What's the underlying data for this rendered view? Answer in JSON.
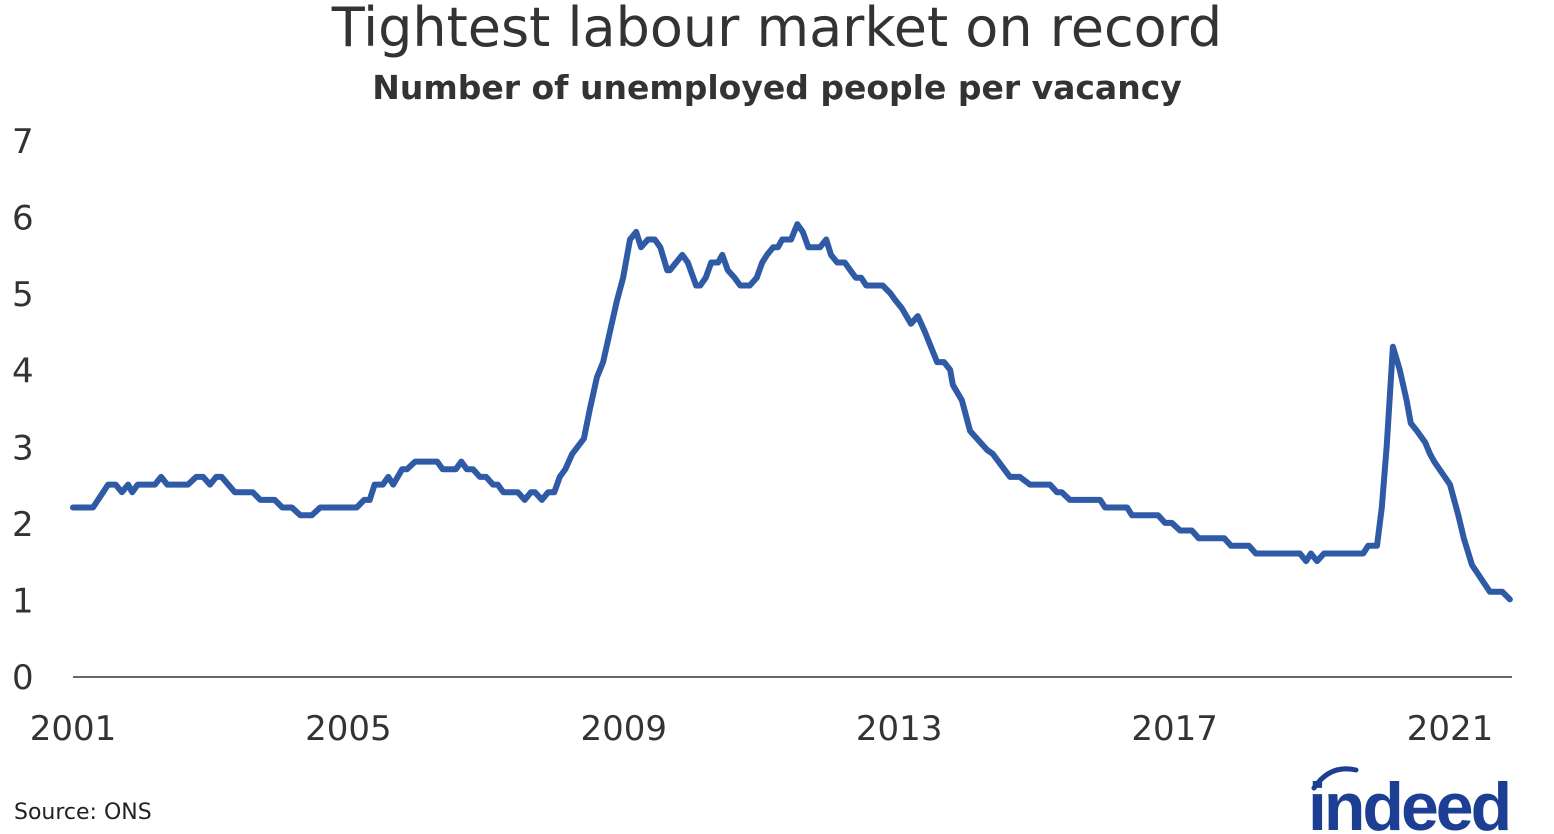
{
  "chart_data": {
    "type": "line",
    "title": "Tightest labour market on record",
    "subtitle": "Number of unemployed people per vacancy",
    "xlabel": "",
    "ylabel": "",
    "xlim": [
      2001,
      2022
    ],
    "ylim": [
      0,
      7
    ],
    "x_ticks": [
      2001,
      2005,
      2009,
      2013,
      2017,
      2021
    ],
    "y_ticks": [
      0,
      1,
      2,
      3,
      4,
      5,
      6,
      7
    ],
    "grid": false,
    "line_color": "#2F5AA5",
    "points": [
      [
        2001.0,
        2.2
      ],
      [
        2001.29,
        2.2
      ],
      [
        2001.51,
        2.5
      ],
      [
        2001.62,
        2.5
      ],
      [
        2001.71,
        2.4
      ],
      [
        2001.8,
        2.5
      ],
      [
        2001.86,
        2.4
      ],
      [
        2001.94,
        2.5
      ],
      [
        2002.19,
        2.5
      ],
      [
        2002.28,
        2.6
      ],
      [
        2002.37,
        2.5
      ],
      [
        2002.67,
        2.5
      ],
      [
        2002.79,
        2.6
      ],
      [
        2002.89,
        2.6
      ],
      [
        2002.99,
        2.5
      ],
      [
        2003.08,
        2.6
      ],
      [
        2003.16,
        2.6
      ],
      [
        2003.35,
        2.4
      ],
      [
        2003.61,
        2.4
      ],
      [
        2003.72,
        2.3
      ],
      [
        2003.93,
        2.3
      ],
      [
        2004.04,
        2.2
      ],
      [
        2004.18,
        2.2
      ],
      [
        2004.3,
        2.1
      ],
      [
        2004.47,
        2.1
      ],
      [
        2004.59,
        2.2
      ],
      [
        2005.12,
        2.2
      ],
      [
        2005.23,
        2.3
      ],
      [
        2005.31,
        2.3
      ],
      [
        2005.38,
        2.5
      ],
      [
        2005.5,
        2.5
      ],
      [
        2005.58,
        2.6
      ],
      [
        2005.65,
        2.5
      ],
      [
        2005.78,
        2.7
      ],
      [
        2005.85,
        2.7
      ],
      [
        2005.97,
        2.8
      ],
      [
        2006.29,
        2.8
      ],
      [
        2006.37,
        2.7
      ],
      [
        2006.56,
        2.7
      ],
      [
        2006.64,
        2.8
      ],
      [
        2006.72,
        2.7
      ],
      [
        2006.81,
        2.7
      ],
      [
        2006.91,
        2.6
      ],
      [
        2007.0,
        2.6
      ],
      [
        2007.1,
        2.5
      ],
      [
        2007.17,
        2.5
      ],
      [
        2007.25,
        2.4
      ],
      [
        2007.46,
        2.4
      ],
      [
        2007.56,
        2.3
      ],
      [
        2007.65,
        2.4
      ],
      [
        2007.71,
        2.4
      ],
      [
        2007.81,
        2.3
      ],
      [
        2007.9,
        2.4
      ],
      [
        2007.99,
        2.4
      ],
      [
        2008.07,
        2.6
      ],
      [
        2008.15,
        2.7
      ],
      [
        2008.25,
        2.9
      ],
      [
        2008.42,
        3.1
      ],
      [
        2008.51,
        3.5
      ],
      [
        2008.61,
        3.9
      ],
      [
        2008.7,
        4.1
      ],
      [
        2008.8,
        4.5
      ],
      [
        2008.9,
        4.9
      ],
      [
        2008.99,
        5.2
      ],
      [
        2009.09,
        5.7
      ],
      [
        2009.18,
        5.8
      ],
      [
        2009.25,
        5.6
      ],
      [
        2009.35,
        5.7
      ],
      [
        2009.45,
        5.7
      ],
      [
        2009.53,
        5.6
      ],
      [
        2009.63,
        5.3
      ],
      [
        2009.67,
        5.3
      ],
      [
        2009.85,
        5.5
      ],
      [
        2009.93,
        5.4
      ],
      [
        2010.05,
        5.1
      ],
      [
        2010.11,
        5.1
      ],
      [
        2010.19,
        5.2
      ],
      [
        2010.27,
        5.4
      ],
      [
        2010.37,
        5.4
      ],
      [
        2010.43,
        5.5
      ],
      [
        2010.51,
        5.3
      ],
      [
        2010.61,
        5.2
      ],
      [
        2010.69,
        5.1
      ],
      [
        2010.83,
        5.1
      ],
      [
        2010.93,
        5.2
      ],
      [
        2011.01,
        5.4
      ],
      [
        2011.08,
        5.5
      ],
      [
        2011.17,
        5.6
      ],
      [
        2011.24,
        5.6
      ],
      [
        2011.3,
        5.7
      ],
      [
        2011.43,
        5.7
      ],
      [
        2011.52,
        5.9
      ],
      [
        2011.6,
        5.8
      ],
      [
        2011.68,
        5.6
      ],
      [
        2011.85,
        5.6
      ],
      [
        2011.94,
        5.7
      ],
      [
        2012.01,
        5.5
      ],
      [
        2012.1,
        5.4
      ],
      [
        2012.21,
        5.4
      ],
      [
        2012.29,
        5.3
      ],
      [
        2012.37,
        5.2
      ],
      [
        2012.45,
        5.2
      ],
      [
        2012.52,
        5.1
      ],
      [
        2012.76,
        5.1
      ],
      [
        2012.87,
        5.0
      ],
      [
        2012.95,
        4.9
      ],
      [
        2013.04,
        4.8
      ],
      [
        2013.17,
        4.6
      ],
      [
        2013.27,
        4.7
      ],
      [
        2013.37,
        4.5
      ],
      [
        2013.46,
        4.3
      ],
      [
        2013.55,
        4.1
      ],
      [
        2013.65,
        4.1
      ],
      [
        2013.74,
        4.0
      ],
      [
        2013.78,
        3.8
      ],
      [
        2013.91,
        3.6
      ],
      [
        2014.03,
        3.2
      ],
      [
        2014.28,
        2.95
      ],
      [
        2014.36,
        2.9
      ],
      [
        2014.61,
        2.6
      ],
      [
        2014.75,
        2.6
      ],
      [
        2014.9,
        2.5
      ],
      [
        2015.19,
        2.5
      ],
      [
        2015.29,
        2.4
      ],
      [
        2015.36,
        2.4
      ],
      [
        2015.48,
        2.3
      ],
      [
        2015.92,
        2.3
      ],
      [
        2015.99,
        2.2
      ],
      [
        2016.31,
        2.2
      ],
      [
        2016.38,
        2.1
      ],
      [
        2016.76,
        2.1
      ],
      [
        2016.86,
        2.0
      ],
      [
        2016.96,
        2.0
      ],
      [
        2017.08,
        1.9
      ],
      [
        2017.25,
        1.9
      ],
      [
        2017.35,
        1.8
      ],
      [
        2017.72,
        1.8
      ],
      [
        2017.82,
        1.7
      ],
      [
        2018.08,
        1.7
      ],
      [
        2018.18,
        1.6
      ],
      [
        2018.82,
        1.6
      ],
      [
        2018.91,
        1.5
      ],
      [
        2018.98,
        1.6
      ],
      [
        2019.07,
        1.5
      ],
      [
        2019.17,
        1.6
      ],
      [
        2019.74,
        1.6
      ],
      [
        2019.81,
        1.7
      ],
      [
        2019.94,
        1.7
      ],
      [
        2020.01,
        2.2
      ],
      [
        2020.08,
        3.0
      ],
      [
        2020.17,
        4.3
      ],
      [
        2020.27,
        4.0
      ],
      [
        2020.37,
        3.6
      ],
      [
        2020.43,
        3.3
      ],
      [
        2020.52,
        3.2
      ],
      [
        2020.64,
        3.05
      ],
      [
        2020.71,
        2.9
      ],
      [
        2020.77,
        2.8
      ],
      [
        2021.0,
        2.5
      ],
      [
        2021.12,
        2.1
      ],
      [
        2021.2,
        1.8
      ],
      [
        2021.32,
        1.45
      ],
      [
        2021.58,
        1.1
      ],
      [
        2021.76,
        1.1
      ],
      [
        2021.87,
        1.0
      ]
    ]
  },
  "footer": {
    "source": "Source: ONS",
    "logo_text": "indeed",
    "logo_color": "#1C3F94"
  }
}
